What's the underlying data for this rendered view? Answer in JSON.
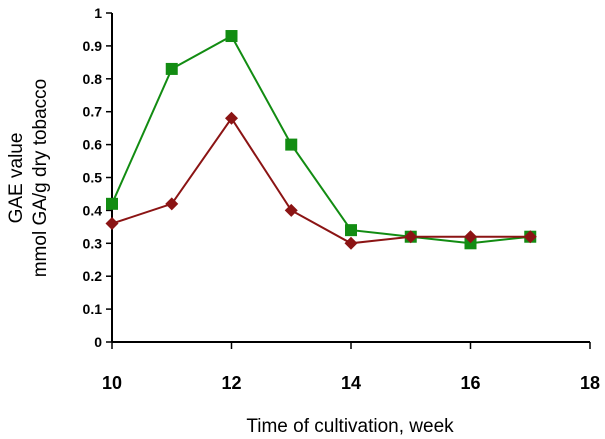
{
  "chart_data": {
    "type": "line",
    "title": "",
    "xlabel": "Time of cultivation, week",
    "ylabel_lines": [
      "GAE value",
      "mmol GA/g dry tobacco"
    ],
    "xlim": [
      10,
      18
    ],
    "ylim": [
      0,
      1
    ],
    "xticks": [
      "10",
      "12",
      "14",
      "16",
      "18"
    ],
    "yticks": [
      "0",
      "0.1",
      "0.2",
      "0.3",
      "0.4",
      "0.5",
      "0.6",
      "0.7",
      "0.8",
      "0.9",
      "1"
    ],
    "grid": false,
    "legend": "none",
    "series": [
      {
        "marker": "square",
        "color": "#128c12",
        "x": [
          10,
          11,
          12,
          13,
          14,
          15,
          16,
          17
        ],
        "y": [
          0.42,
          0.83,
          0.93,
          0.6,
          0.34,
          0.32,
          0.3,
          0.32
        ]
      },
      {
        "marker": "diamond",
        "color": "#8b1414",
        "x": [
          10,
          11,
          12,
          13,
          14,
          15,
          16,
          17
        ],
        "y": [
          0.36,
          0.42,
          0.68,
          0.4,
          0.3,
          0.32,
          0.32,
          0.32
        ]
      }
    ]
  }
}
